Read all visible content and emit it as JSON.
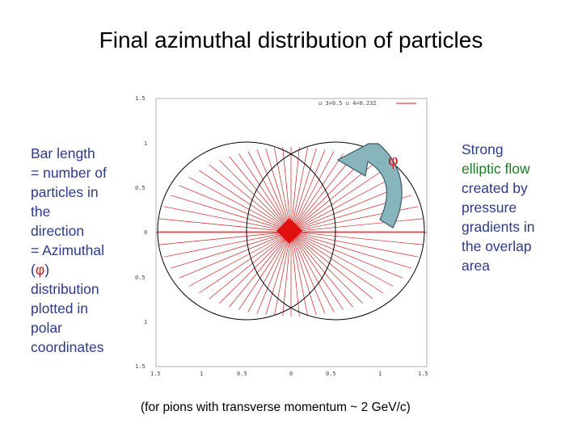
{
  "title": "Final azimuthal distribution of particles",
  "left_text": {
    "line1": "Bar length",
    "line2": "= number of",
    "line3": "particles in",
    "line4": "the",
    "line5": "direction",
    "line6": "= Azimuthal",
    "line7_open": "(",
    "phi": "φ",
    "line7_close": ")",
    "line8": "distribution",
    "line9": "plotted in",
    "line10": "polar",
    "line11": "coordinates"
  },
  "right_text": {
    "line1": "Strong",
    "line2": "elliptic flow",
    "line3": "created by",
    "line4": "pressure",
    "line5": "gradients in",
    "line6": "the overlap",
    "line7": "area"
  },
  "phi_label": "φ",
  "caption": "(for pions with transverse momentum ~ 2 GeV/c)",
  "plot": {
    "legend": "u 3=0.5 u 4=0.232",
    "y_ticks": [
      "1.5",
      "1",
      "0.5",
      "0",
      "0.5",
      "1",
      "1.5"
    ],
    "x_ticks": [
      "1.5",
      "1",
      "0.5",
      "0",
      "0.5",
      "1",
      "1.5"
    ],
    "x_range": [
      -1.5,
      1.5
    ],
    "y_range": [
      -1.5,
      1.5
    ],
    "colors": {
      "bars": "#d02020",
      "arrow_fill": "#88b4bc",
      "arrow_stroke": "#3a5a66",
      "circles": "#000000"
    }
  }
}
